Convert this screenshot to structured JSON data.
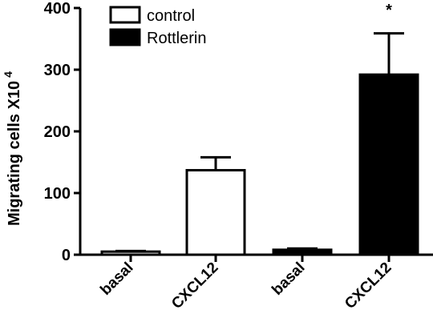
{
  "chart_data": {
    "type": "bar",
    "ylabel": "Migrating cells X10",
    "ylabel_exponent": "4",
    "ylim": [
      0,
      400
    ],
    "yticks": [
      "0",
      "100",
      "200",
      "300",
      "400"
    ],
    "grid": false,
    "legend_position": "top-left",
    "legend": [
      {
        "name": "control",
        "fill": "#ffffff"
      },
      {
        "name": "Rottlerin",
        "fill": "#000000"
      }
    ],
    "bars": [
      {
        "category": "basal",
        "series": "control",
        "value": 5,
        "error": 1
      },
      {
        "category": "CXCL12",
        "series": "control",
        "value": 137,
        "error": 21
      },
      {
        "category": "basal",
        "series": "Rottlerin",
        "value": 8,
        "error": 2
      },
      {
        "category": "CXCL12",
        "series": "Rottlerin",
        "value": 292,
        "error": 67
      }
    ],
    "annotations": [
      {
        "text": "*",
        "bar_index": 3
      }
    ]
  }
}
